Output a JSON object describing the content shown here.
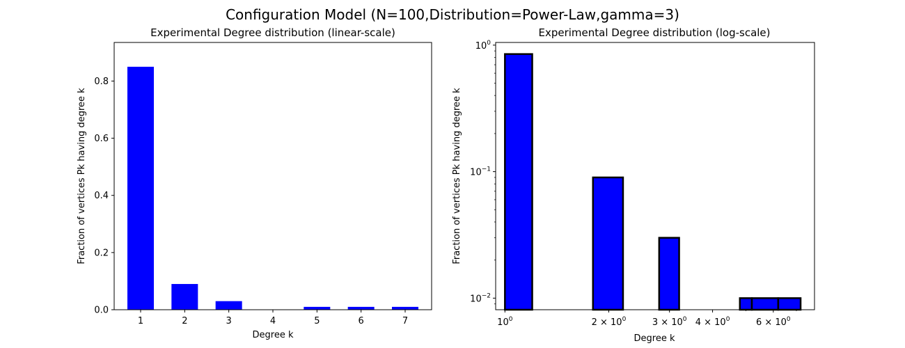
{
  "figure_title": "Configuration Model (N=100,Distribution=Power-Law,gamma=3)",
  "colors": {
    "bar_fill": "#0000ff",
    "bar_edge": "#000000",
    "axis": "#000000",
    "background": "#ffffff"
  },
  "chart_data": [
    {
      "type": "bar",
      "title": "Experimental Degree distribution (linear-scale)",
      "xlabel": "Degree k",
      "ylabel": "Fraction of vertices Pk having degree k",
      "categories": [
        "1",
        "2",
        "3",
        "4",
        "5",
        "6",
        "7"
      ],
      "x": [
        1,
        2,
        3,
        4,
        5,
        6,
        7
      ],
      "values": [
        0.85,
        0.09,
        0.03,
        0.0,
        0.01,
        0.01,
        0.01
      ],
      "xlim": [
        0.4,
        7.6
      ],
      "ylim": [
        0,
        0.935
      ],
      "yticks": [
        0.0,
        0.2,
        0.4,
        0.6,
        0.8
      ],
      "ytick_labels": [
        "0.0",
        "0.2",
        "0.4",
        "0.6",
        "0.8"
      ],
      "grid": false,
      "bar_edge": false
    },
    {
      "type": "bar",
      "title": "Experimental Degree distribution (log-scale)",
      "xlabel": "Degree k",
      "ylabel": "Fraction of vertices Pk having degree k",
      "xscale": "log",
      "yscale": "log",
      "bars": [
        {
          "left": 1.0,
          "right": 1.2,
          "value": 0.85
        },
        {
          "left": 1.8,
          "right": 2.2,
          "value": 0.09
        },
        {
          "left": 2.8,
          "right": 3.2,
          "value": 0.03
        },
        {
          "left": 4.8,
          "right": 5.2,
          "value": 0.01
        },
        {
          "left": 5.2,
          "right": 6.2,
          "value": 0.01
        },
        {
          "left": 6.2,
          "right": 7.2,
          "value": 0.01
        }
      ],
      "xlim": [
        0.94,
        7.9
      ],
      "ylim": [
        0.0081,
        1.05
      ],
      "xticks": [
        {
          "value": 1,
          "mantissa": "",
          "base": "10",
          "exp": "0"
        },
        {
          "value": 2,
          "mantissa": "2 × ",
          "base": "10",
          "exp": "0"
        },
        {
          "value": 3,
          "mantissa": "3 × ",
          "base": "10",
          "exp": "0"
        },
        {
          "value": 4,
          "mantissa": "4 × ",
          "base": "10",
          "exp": "0"
        },
        {
          "value": 6,
          "mantissa": "6 × ",
          "base": "10",
          "exp": "0"
        }
      ],
      "x_minor_ticks": [
        5,
        7
      ],
      "yticks": [
        {
          "value": 0.01,
          "base": "10",
          "exp": "−2"
        },
        {
          "value": 0.1,
          "base": "10",
          "exp": "−1"
        },
        {
          "value": 1,
          "base": "10",
          "exp": "0"
        }
      ],
      "y_minor_ticks": [
        0.009,
        0.02,
        0.03,
        0.04,
        0.05,
        0.06,
        0.07,
        0.08,
        0.09,
        0.2,
        0.3,
        0.4,
        0.5,
        0.6,
        0.7,
        0.8,
        0.9
      ],
      "grid": false,
      "bar_edge": true
    }
  ]
}
